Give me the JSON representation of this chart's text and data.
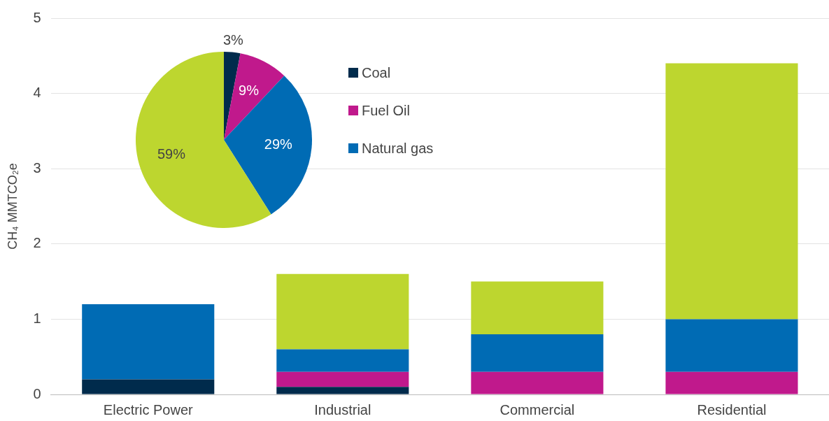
{
  "chart_data": [
    {
      "type": "bar",
      "stacked": true,
      "ylabel": "CH₄ MMTCO₂e",
      "categories": [
        "Electric Power",
        "Industrial",
        "Commercial",
        "Residential"
      ],
      "series": [
        {
          "color": "#002b4c",
          "values": [
            0.2,
            0.1,
            0,
            0
          ]
        },
        {
          "color": "#c0198c",
          "values": [
            0,
            0.2,
            0.3,
            0.3
          ]
        },
        {
          "color": "#006bb4",
          "values": [
            1.0,
            0.3,
            0.5,
            0.7
          ]
        },
        {
          "color": "#bdd62f",
          "values": [
            0,
            1.0,
            0.7,
            3.4
          ]
        }
      ],
      "ylim": [
        0,
        5
      ],
      "yticks": [
        0,
        1,
        2,
        3,
        4,
        5
      ],
      "grid": "y"
    },
    {
      "type": "pie",
      "categories": [
        "Coal",
        "Fuel Oil",
        "Natural gas",
        null
      ],
      "values": [
        3,
        9,
        29,
        59
      ],
      "colors": [
        "#002b4c",
        "#c0198c",
        "#006bb4",
        "#bdd62f"
      ],
      "value_labels": [
        "3%",
        "9%",
        "29%",
        "59%"
      ],
      "legend": "right"
    }
  ]
}
